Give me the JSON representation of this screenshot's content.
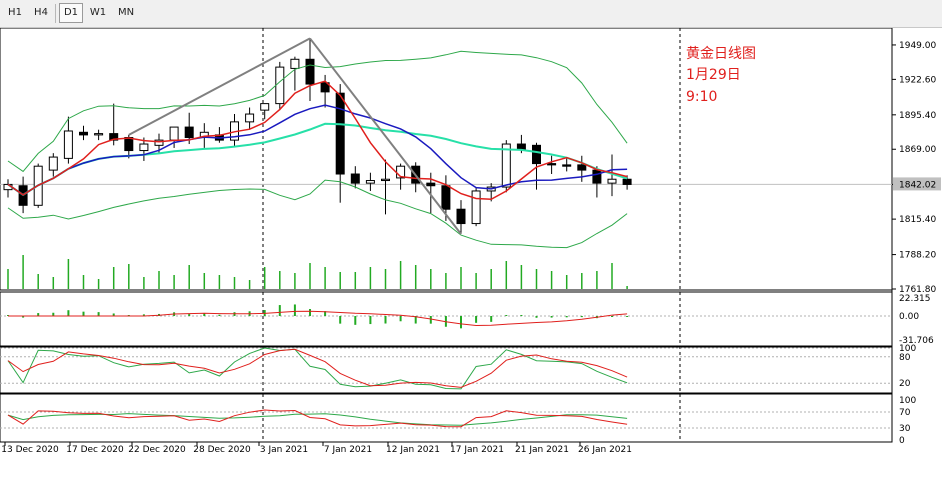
{
  "toolbar": {
    "timeframes": [
      {
        "label": "H1",
        "active": false
      },
      {
        "label": "H4",
        "active": false
      },
      {
        "label": "D1",
        "active": true
      },
      {
        "label": "W1",
        "active": false
      },
      {
        "label": "MN",
        "active": false
      }
    ]
  },
  "annotation": {
    "line1": "黄金日线图",
    "line2": "1月29日",
    "line3": "9:10"
  },
  "current_price": "1842.02",
  "chart_data": [
    {
      "type": "candlestick",
      "x_labels": [
        "13 Dec 2020",
        "17 Dec 2020",
        "22 Dec 2020",
        "28 Dec 2020",
        "3 Jan 2021",
        "7 Jan 2021",
        "12 Jan 2021",
        "17 Jan 2021",
        "21 Jan 2021",
        "26 Jan 2021"
      ],
      "y_ticks": [
        "1949.00",
        "1922.60",
        "1895.40",
        "1869.00",
        "1842.02",
        "1815.40",
        "1788.20",
        "1761.80"
      ],
      "ylim": [
        1761.8,
        1962
      ],
      "candles": [
        [
          1838,
          1846,
          1832,
          1842
        ],
        [
          1841,
          1848,
          1820,
          1826
        ],
        [
          1826,
          1858,
          1824,
          1856
        ],
        [
          1853,
          1866,
          1848,
          1863
        ],
        [
          1862,
          1894,
          1858,
          1883
        ],
        [
          1882,
          1887,
          1876,
          1880
        ],
        [
          1880,
          1884,
          1876,
          1881
        ],
        [
          1881,
          1904,
          1872,
          1876
        ],
        [
          1878,
          1880,
          1862,
          1868
        ],
        [
          1868,
          1878,
          1860,
          1873
        ],
        [
          1872,
          1881,
          1866,
          1876
        ],
        [
          1876,
          1886,
          1870,
          1886
        ],
        [
          1886,
          1897,
          1873,
          1878
        ],
        [
          1878,
          1889,
          1870,
          1882
        ],
        [
          1880,
          1886,
          1874,
          1876
        ],
        [
          1876,
          1896,
          1871,
          1890
        ],
        [
          1890,
          1901,
          1884,
          1896
        ],
        [
          1899,
          1904,
          1892,
          1904
        ],
        [
          1904,
          1936,
          1899,
          1932
        ],
        [
          1931,
          1940,
          1914,
          1938
        ],
        [
          1938,
          1954,
          1906,
          1919
        ],
        [
          1920,
          1926,
          1901,
          1913
        ],
        [
          1912,
          1919,
          1828,
          1850
        ],
        [
          1850,
          1856,
          1839,
          1843
        ],
        [
          1843,
          1851,
          1837,
          1845
        ],
        [
          1845,
          1861,
          1819,
          1846
        ],
        [
          1847,
          1858,
          1838,
          1856
        ],
        [
          1856,
          1859,
          1836,
          1843
        ],
        [
          1843,
          1851,
          1820,
          1841
        ],
        [
          1841,
          1849,
          1814,
          1823
        ],
        [
          1823,
          1830,
          1804,
          1812
        ],
        [
          1812,
          1840,
          1810,
          1837
        ],
        [
          1837,
          1843,
          1829,
          1840
        ],
        [
          1840,
          1876,
          1836,
          1873
        ],
        [
          1873,
          1880,
          1866,
          1869
        ],
        [
          1872,
          1874,
          1838,
          1858
        ],
        [
          1858,
          1864,
          1850,
          1857
        ],
        [
          1857,
          1862,
          1852,
          1856
        ],
        [
          1857,
          1864,
          1844,
          1853
        ],
        [
          1853,
          1856,
          1832,
          1843
        ],
        [
          1843,
          1865,
          1833,
          1846
        ],
        [
          1846,
          1849,
          1838,
          1842
        ]
      ],
      "volume": [
        20,
        34,
        15,
        12,
        30,
        14,
        10,
        22,
        25,
        12,
        18,
        14,
        24,
        16,
        14,
        12,
        9,
        22,
        18,
        16,
        26,
        22,
        17,
        17,
        22,
        20,
        28,
        24,
        20,
        16,
        22,
        16,
        20,
        28,
        24,
        20,
        18,
        14,
        16,
        18,
        26,
        3
      ]
    },
    {
      "type": "histogram",
      "y_ticks": [
        "22.315",
        "0.00",
        "-31.706"
      ]
    },
    {
      "type": "line",
      "y_ticks": [
        "100",
        "80",
        "20"
      ]
    },
    {
      "type": "line",
      "y_ticks": [
        "100",
        "70",
        "30",
        "0"
      ]
    }
  ]
}
